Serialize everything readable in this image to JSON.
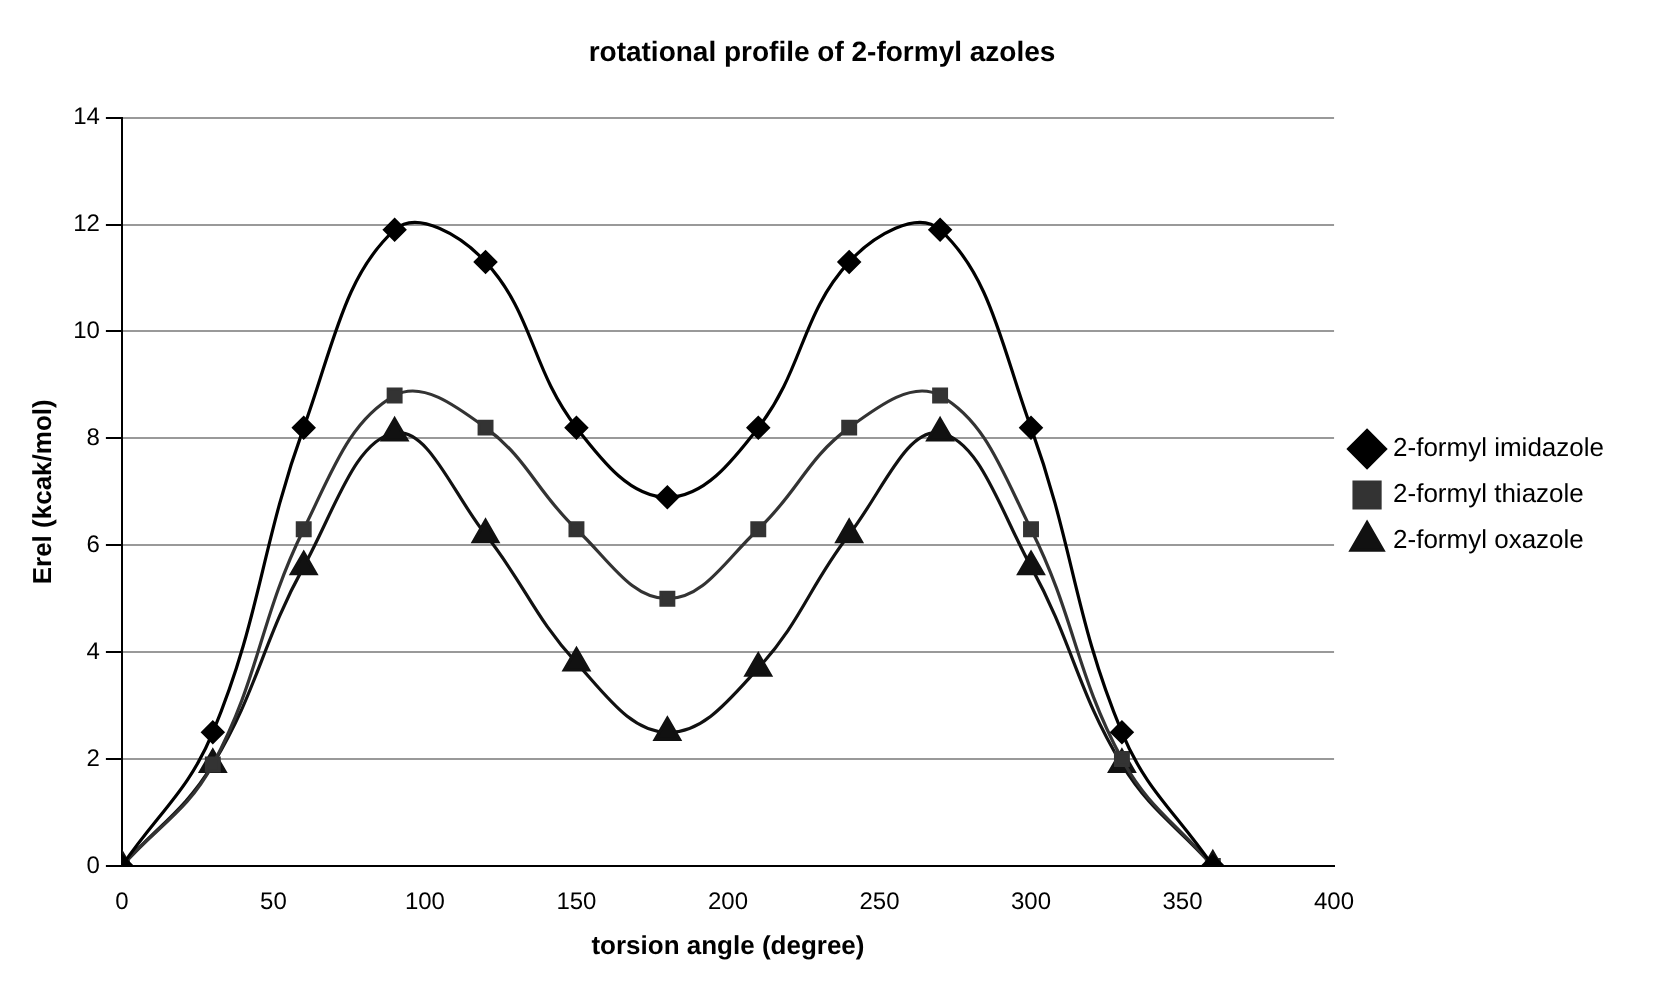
{
  "chart_data": {
    "type": "line",
    "title": "rotational profile of 2-formyl azoles",
    "xlabel": "torsion angle (degree)",
    "ylabel": "Erel (kcak/mol)",
    "x": [
      0,
      30,
      60,
      90,
      120,
      150,
      180,
      210,
      240,
      270,
      300,
      330,
      360
    ],
    "series": [
      {
        "name": "2-formyl imidazole",
        "color": "#000000",
        "marker": "diamond",
        "values": [
          0,
          2.5,
          8.2,
          11.9,
          11.3,
          8.2,
          6.9,
          8.2,
          11.3,
          11.9,
          8.2,
          2.5,
          0
        ]
      },
      {
        "name": "2-formyl thiazole",
        "color": "#333333",
        "marker": "square",
        "values": [
          0,
          1.9,
          6.3,
          8.8,
          8.2,
          6.3,
          5.0,
          6.3,
          8.2,
          8.8,
          6.3,
          2.0,
          0
        ]
      },
      {
        "name": "2-formyl oxazole",
        "color": "#111111",
        "marker": "triangle",
        "values": [
          0,
          1.9,
          5.6,
          8.1,
          6.2,
          3.8,
          2.5,
          3.7,
          6.2,
          8.1,
          5.6,
          1.9,
          0
        ]
      }
    ],
    "xlim": [
      0,
      400
    ],
    "xticks": [
      0,
      50,
      100,
      150,
      200,
      250,
      300,
      350,
      400
    ],
    "ylim": [
      0,
      14
    ],
    "yticks": [
      0,
      2,
      4,
      6,
      8,
      10,
      12,
      14
    ],
    "grid": "y",
    "legend": "right"
  }
}
